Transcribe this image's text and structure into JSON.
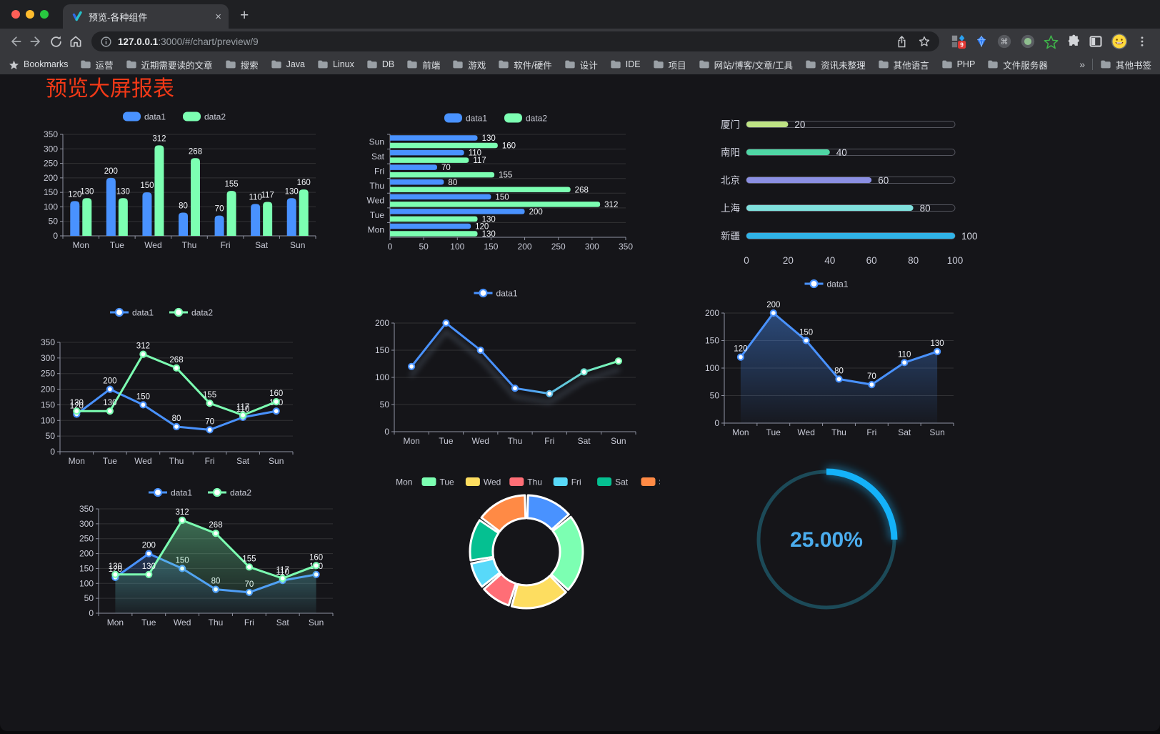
{
  "browser": {
    "tab": {
      "title": "预览-各种组件",
      "close_glyph": "×",
      "new_tab_glyph": "+"
    },
    "url": {
      "host": "127.0.0.1",
      "path": ":3000/#/chart/preview/9"
    },
    "bookmarks_label": "Bookmarks",
    "bookmarks": [
      "运营",
      "近期需要读的文章",
      "搜索",
      "Java",
      "Linux",
      "DB",
      "前端",
      "游戏",
      "软件/硬件",
      "设计",
      "IDE",
      "项目",
      "网站/博客/文章/工具",
      "资讯未整理",
      "其他语言",
      "PHP",
      "文件服务器"
    ],
    "overflow_chevron": "»",
    "other_bookmarks": "其他书签",
    "extension_badge": "9"
  },
  "page": {
    "title": "预览大屏报表",
    "title_color": "#f23917",
    "background": "#151519"
  },
  "palette": [
    "#4992ff",
    "#7cffb2",
    "#fddd60",
    "#ff6e76",
    "#58d9f9",
    "#05c091",
    "#ff8a45"
  ],
  "chart_data": [
    {
      "id": "bar-grouped",
      "type": "bar",
      "categories": [
        "Mon",
        "Tue",
        "Wed",
        "Thu",
        "Fri",
        "Sat",
        "Sun"
      ],
      "series": [
        {
          "name": "data1",
          "color": "#4992ff",
          "values": [
            120,
            200,
            150,
            80,
            70,
            110,
            130
          ]
        },
        {
          "name": "data2",
          "color": "#7cffb2",
          "values": [
            130,
            130,
            312,
            268,
            155,
            117,
            160
          ]
        }
      ],
      "y_axis": {
        "min": 0,
        "max": 350,
        "step": 50
      },
      "show_labels": true,
      "legend_position": "top",
      "grid": true
    },
    {
      "id": "hbar-grouped",
      "type": "hbar",
      "categories": [
        "Mon",
        "Tue",
        "Wed",
        "Thu",
        "Fri",
        "Sat",
        "Sun"
      ],
      "series": [
        {
          "name": "data1",
          "color": "#4992ff",
          "values": [
            120,
            200,
            150,
            80,
            70,
            110,
            130
          ]
        },
        {
          "name": "data2",
          "color": "#7cffb2",
          "values": [
            130,
            130,
            312,
            268,
            155,
            117,
            160
          ]
        }
      ],
      "x_axis": {
        "min": 0,
        "max": 350,
        "step": 50
      },
      "show_labels": true,
      "legend_position": "top",
      "grid": true
    },
    {
      "id": "progress-list",
      "type": "progress",
      "max": 100,
      "axis_ticks": [
        0,
        20,
        40,
        60,
        80,
        100
      ],
      "items": [
        {
          "label": "厦门",
          "value": 20,
          "color": "#bfe384"
        },
        {
          "label": "南阳",
          "value": 40,
          "color": "#4fd6a5"
        },
        {
          "label": "北京",
          "value": 60,
          "color": "#8b8fe3"
        },
        {
          "label": "上海",
          "value": 80,
          "color": "#80e0dd"
        },
        {
          "label": "新疆",
          "value": 100,
          "color": "#30b3e7"
        }
      ]
    },
    {
      "id": "line-grouped",
      "type": "line",
      "categories": [
        "Mon",
        "Tue",
        "Wed",
        "Thu",
        "Fri",
        "Sat",
        "Sun"
      ],
      "series": [
        {
          "name": "data1",
          "color": "#4992ff",
          "values": [
            120,
            200,
            150,
            80,
            70,
            110,
            130
          ]
        },
        {
          "name": "data2",
          "color": "#7cffb2",
          "values": [
            130,
            130,
            312,
            268,
            155,
            117,
            160
          ]
        }
      ],
      "y_axis": {
        "min": 0,
        "max": 350,
        "step": 50
      },
      "show_labels": true,
      "legend_position": "top",
      "grid": true
    },
    {
      "id": "line-gradient",
      "type": "line_gradient",
      "categories": [
        "Mon",
        "Tue",
        "Wed",
        "Thu",
        "Fri",
        "Sat",
        "Sun"
      ],
      "series": [
        {
          "name": "data1",
          "gradient": [
            "#4992ff",
            "#7cffb2"
          ],
          "values": [
            120,
            200,
            150,
            80,
            70,
            110,
            130
          ]
        }
      ],
      "y_axis": {
        "min": 0,
        "max": 200,
        "step": 50
      },
      "show_labels": false,
      "legend_position": "top",
      "grid": true
    },
    {
      "id": "area-single",
      "type": "area",
      "categories": [
        "Mon",
        "Tue",
        "Wed",
        "Thu",
        "Fri",
        "Sat",
        "Sun"
      ],
      "series": [
        {
          "name": "data1",
          "color": "#4992ff",
          "values": [
            120,
            200,
            150,
            80,
            70,
            110,
            130
          ]
        }
      ],
      "y_axis": {
        "min": 0,
        "max": 200,
        "step": 50
      },
      "show_labels": true,
      "legend_position": "top",
      "grid": true
    },
    {
      "id": "area-grouped",
      "type": "area",
      "categories": [
        "Mon",
        "Tue",
        "Wed",
        "Thu",
        "Fri",
        "Sat",
        "Sun"
      ],
      "series": [
        {
          "name": "data1",
          "color": "#4992ff",
          "values": [
            120,
            200,
            150,
            80,
            70,
            110,
            130
          ]
        },
        {
          "name": "data2",
          "color": "#7cffb2",
          "values": [
            130,
            130,
            312,
            268,
            155,
            117,
            160
          ]
        }
      ],
      "y_axis": {
        "min": 0,
        "max": 350,
        "step": 50
      },
      "show_labels": true,
      "legend_position": "top",
      "grid": true
    },
    {
      "id": "donut",
      "type": "pie",
      "inner_radius_ratio": 0.6,
      "items": [
        {
          "label": "Mon",
          "value": 120,
          "color": "#4992ff"
        },
        {
          "label": "Tue",
          "value": 200,
          "color": "#7cffb2"
        },
        {
          "label": "Wed",
          "value": 150,
          "color": "#fddd60"
        },
        {
          "label": "Thu",
          "value": 80,
          "color": "#ff6e76"
        },
        {
          "label": "Fri",
          "value": 70,
          "color": "#58d9f9"
        },
        {
          "label": "Sat",
          "value": 110,
          "color": "#05c091"
        },
        {
          "label": "Sun",
          "value": 130,
          "color": "#ff8a45"
        }
      ],
      "legend_position": "top",
      "border_color": "#ffffff"
    },
    {
      "id": "gauge",
      "type": "gauge",
      "value": 25,
      "max": 100,
      "display": "25.00%",
      "color": "#14b2f9",
      "track_color": "#1c4a58",
      "text_color": "#4badee"
    }
  ]
}
